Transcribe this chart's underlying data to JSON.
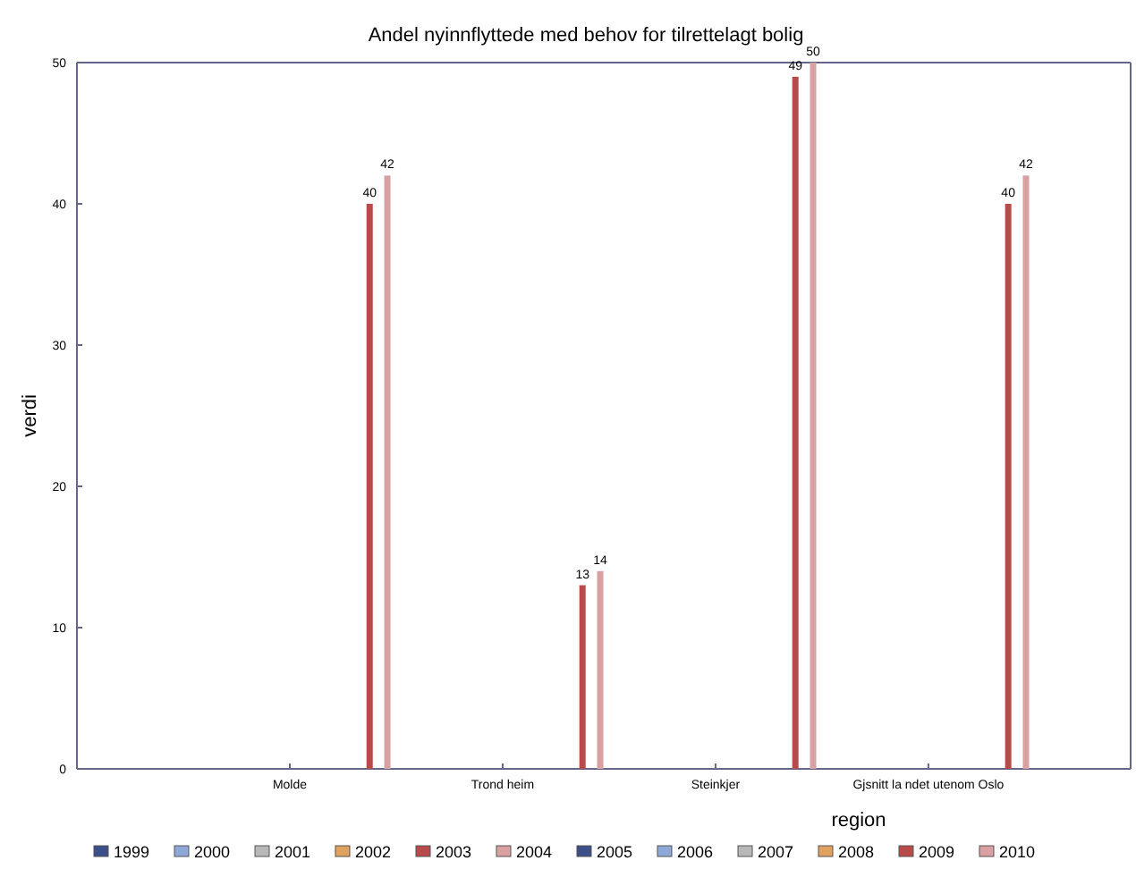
{
  "chart_data": {
    "type": "bar",
    "title": "Andel nyinnflyttede med behov for tilrettelagt bolig",
    "xlabel": "region",
    "ylabel": "verdi",
    "categories": [
      "Molde",
      "Trond heim",
      "Steinkjer",
      "Gjsnitt la ndet utenom Oslo"
    ],
    "ylim": [
      0,
      50
    ],
    "yticks": [
      0,
      10,
      20,
      30,
      40,
      50
    ],
    "grid": false,
    "legend": "bottom",
    "data_labels": true,
    "series": [
      {
        "name": "1999",
        "color": "#3b4f8a",
        "values": [
          null,
          null,
          null,
          null
        ]
      },
      {
        "name": "2000",
        "color": "#8fa8d8",
        "values": [
          null,
          null,
          null,
          null
        ]
      },
      {
        "name": "2001",
        "color": "#b8b8b8",
        "values": [
          null,
          null,
          null,
          null
        ]
      },
      {
        "name": "2002",
        "color": "#e0a060",
        "values": [
          null,
          null,
          null,
          null
        ]
      },
      {
        "name": "2003",
        "color": "#b84a4a",
        "values": [
          null,
          null,
          null,
          null
        ]
      },
      {
        "name": "2004",
        "color": "#d8a0a0",
        "values": [
          null,
          null,
          null,
          null
        ]
      },
      {
        "name": "2005",
        "color": "#3b4f8a",
        "values": [
          null,
          null,
          null,
          null
        ]
      },
      {
        "name": "2006",
        "color": "#8fa8d8",
        "values": [
          null,
          null,
          null,
          null
        ]
      },
      {
        "name": "2007",
        "color": "#b8b8b8",
        "values": [
          null,
          null,
          null,
          null
        ]
      },
      {
        "name": "2008",
        "color": "#e0a060",
        "values": [
          null,
          null,
          null,
          null
        ]
      },
      {
        "name": "2009",
        "color": "#b84a4a",
        "values": [
          40,
          13,
          49,
          40
        ]
      },
      {
        "name": "2010",
        "color": "#d8a0a0",
        "values": [
          42,
          14,
          50,
          42
        ]
      }
    ]
  }
}
